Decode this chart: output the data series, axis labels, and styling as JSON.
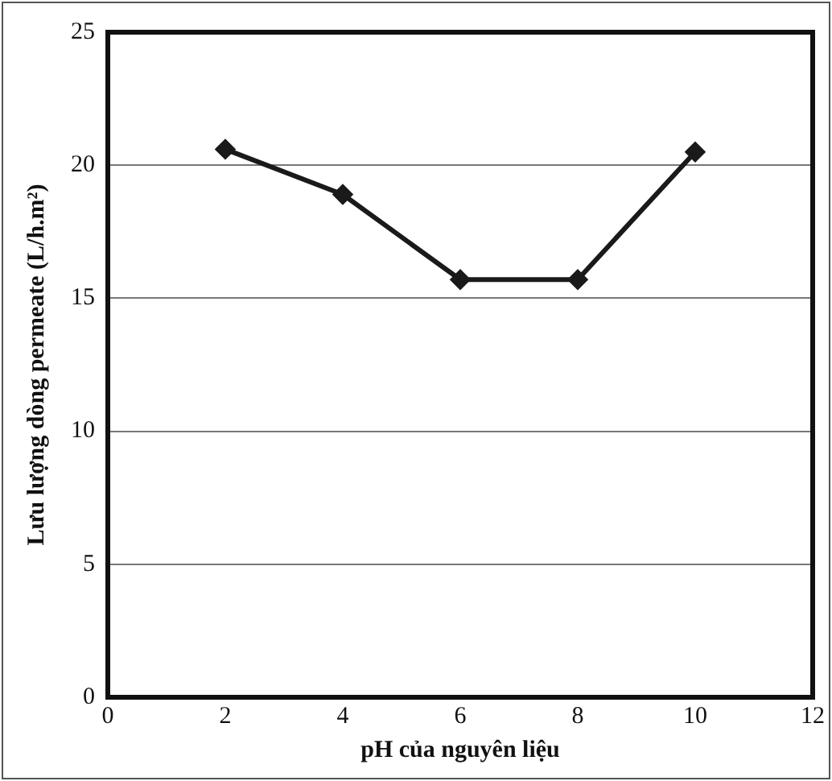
{
  "chart_data": {
    "type": "line",
    "xlabel": "pH của nguyên liệu",
    "ylabel": "Lưu lượng dòng permeate (L/h.m²)",
    "x": [
      2,
      4,
      6,
      8,
      10
    ],
    "series": [
      {
        "color": "#1a1a1a",
        "values": [
          20.6,
          18.9,
          15.7,
          15.7,
          20.5
        ]
      }
    ],
    "xlim": [
      0,
      12
    ],
    "xticks": [
      0,
      2,
      4,
      6,
      8,
      10,
      12
    ],
    "ylim": [
      0,
      25
    ],
    "yticks": [
      0,
      5,
      10,
      15,
      20,
      25
    ],
    "grid": "y",
    "legend": false,
    "marker": "diamond",
    "line_style": "solid"
  }
}
